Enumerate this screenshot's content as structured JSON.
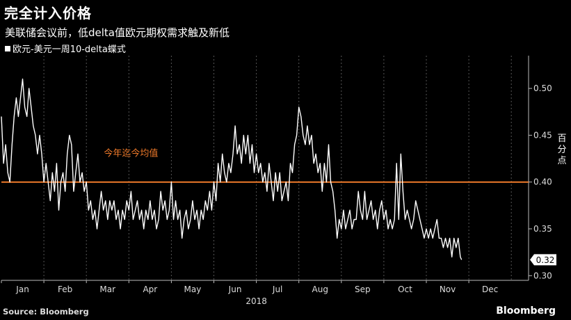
{
  "header": {
    "title": "完全计入价格",
    "subtitle": "美联储会议前，低delta值欧元期权需求触及新低"
  },
  "footer": {
    "source": "Source: Bloomberg",
    "brand": "Bloomberg"
  },
  "colors": {
    "background": "#000000",
    "series": "#ffffff",
    "reference_line": "#f07a2a",
    "grid": "#555555"
  },
  "chart_data": {
    "type": "line",
    "series_name": "欧元-美元一周10-delta蝶式",
    "ylabel": "百分点",
    "xlabel": "2018",
    "ylim": [
      0.295,
      0.535
    ],
    "y_ticks": [
      0.3,
      0.35,
      0.4,
      0.45,
      0.5
    ],
    "months": [
      "Jan",
      "Feb",
      "Mar",
      "Apr",
      "May",
      "Jun",
      "Jul",
      "Aug",
      "Sep",
      "Oct",
      "Nov",
      "Dec"
    ],
    "grid": "vertical dashed at month boundaries",
    "reference_line": {
      "label": "今年迄今均值",
      "value": 0.4
    },
    "last_value_label": "0.32",
    "x_unit": "month index (0 = Jan 1)",
    "values": [
      [
        0.0,
        0.47
      ],
      [
        0.05,
        0.42
      ],
      [
        0.1,
        0.44
      ],
      [
        0.15,
        0.41
      ],
      [
        0.2,
        0.4
      ],
      [
        0.25,
        0.44
      ],
      [
        0.3,
        0.47
      ],
      [
        0.35,
        0.49
      ],
      [
        0.4,
        0.47
      ],
      [
        0.45,
        0.49
      ],
      [
        0.5,
        0.51
      ],
      [
        0.55,
        0.48
      ],
      [
        0.6,
        0.47
      ],
      [
        0.65,
        0.5
      ],
      [
        0.7,
        0.48
      ],
      [
        0.75,
        0.46
      ],
      [
        0.8,
        0.45
      ],
      [
        0.85,
        0.43
      ],
      [
        0.9,
        0.45
      ],
      [
        0.95,
        0.43
      ],
      [
        1.0,
        0.4
      ],
      [
        1.05,
        0.42
      ],
      [
        1.1,
        0.4
      ],
      [
        1.15,
        0.38
      ],
      [
        1.2,
        0.41
      ],
      [
        1.25,
        0.39
      ],
      [
        1.3,
        0.42
      ],
      [
        1.35,
        0.37
      ],
      [
        1.4,
        0.4
      ],
      [
        1.45,
        0.41
      ],
      [
        1.5,
        0.39
      ],
      [
        1.55,
        0.43
      ],
      [
        1.6,
        0.45
      ],
      [
        1.65,
        0.44
      ],
      [
        1.7,
        0.39
      ],
      [
        1.75,
        0.41
      ],
      [
        1.8,
        0.43
      ],
      [
        1.85,
        0.4
      ],
      [
        1.9,
        0.41
      ],
      [
        1.95,
        0.39
      ],
      [
        2.0,
        0.4
      ],
      [
        2.05,
        0.37
      ],
      [
        2.1,
        0.38
      ],
      [
        2.15,
        0.36
      ],
      [
        2.2,
        0.37
      ],
      [
        2.25,
        0.35
      ],
      [
        2.3,
        0.37
      ],
      [
        2.35,
        0.39
      ],
      [
        2.4,
        0.37
      ],
      [
        2.45,
        0.38
      ],
      [
        2.5,
        0.36
      ],
      [
        2.55,
        0.38
      ],
      [
        2.6,
        0.37
      ],
      [
        2.65,
        0.38
      ],
      [
        2.7,
        0.36
      ],
      [
        2.75,
        0.37
      ],
      [
        2.8,
        0.35
      ],
      [
        2.85,
        0.37
      ],
      [
        2.9,
        0.36
      ],
      [
        2.95,
        0.38
      ],
      [
        3.0,
        0.37
      ],
      [
        3.05,
        0.39
      ],
      [
        3.1,
        0.36
      ],
      [
        3.15,
        0.37
      ],
      [
        3.2,
        0.38
      ],
      [
        3.25,
        0.36
      ],
      [
        3.3,
        0.37
      ],
      [
        3.35,
        0.35
      ],
      [
        3.4,
        0.37
      ],
      [
        3.45,
        0.36
      ],
      [
        3.5,
        0.38
      ],
      [
        3.55,
        0.36
      ],
      [
        3.6,
        0.37
      ],
      [
        3.65,
        0.35
      ],
      [
        3.7,
        0.36
      ],
      [
        3.75,
        0.39
      ],
      [
        3.8,
        0.37
      ],
      [
        3.85,
        0.38
      ],
      [
        3.9,
        0.36
      ],
      [
        3.95,
        0.37
      ],
      [
        4.0,
        0.4
      ],
      [
        4.05,
        0.36
      ],
      [
        4.1,
        0.38
      ],
      [
        4.15,
        0.36
      ],
      [
        4.2,
        0.37
      ],
      [
        4.25,
        0.34
      ],
      [
        4.3,
        0.36
      ],
      [
        4.35,
        0.37
      ],
      [
        4.4,
        0.35
      ],
      [
        4.45,
        0.36
      ],
      [
        4.5,
        0.38
      ],
      [
        4.55,
        0.36
      ],
      [
        4.6,
        0.37
      ],
      [
        4.65,
        0.35
      ],
      [
        4.7,
        0.37
      ],
      [
        4.75,
        0.36
      ],
      [
        4.8,
        0.38
      ],
      [
        4.85,
        0.37
      ],
      [
        4.9,
        0.39
      ],
      [
        4.95,
        0.37
      ],
      [
        5.0,
        0.4
      ],
      [
        5.05,
        0.38
      ],
      [
        5.1,
        0.42
      ],
      [
        5.15,
        0.4
      ],
      [
        5.2,
        0.43
      ],
      [
        5.25,
        0.41
      ],
      [
        5.3,
        0.4
      ],
      [
        5.35,
        0.42
      ],
      [
        5.4,
        0.41
      ],
      [
        5.45,
        0.43
      ],
      [
        5.5,
        0.46
      ],
      [
        5.55,
        0.43
      ],
      [
        5.6,
        0.44
      ],
      [
        5.65,
        0.42
      ],
      [
        5.7,
        0.45
      ],
      [
        5.75,
        0.43
      ],
      [
        5.8,
        0.45
      ],
      [
        5.85,
        0.42
      ],
      [
        5.9,
        0.44
      ],
      [
        5.95,
        0.41
      ],
      [
        6.0,
        0.43
      ],
      [
        6.05,
        0.41
      ],
      [
        6.1,
        0.42
      ],
      [
        6.15,
        0.4
      ],
      [
        6.2,
        0.41
      ],
      [
        6.25,
        0.39
      ],
      [
        6.3,
        0.42
      ],
      [
        6.35,
        0.4
      ],
      [
        6.4,
        0.38
      ],
      [
        6.45,
        0.41
      ],
      [
        6.5,
        0.39
      ],
      [
        6.55,
        0.41
      ],
      [
        6.6,
        0.38
      ],
      [
        6.65,
        0.39
      ],
      [
        6.7,
        0.4
      ],
      [
        6.75,
        0.38
      ],
      [
        6.8,
        0.42
      ],
      [
        6.85,
        0.41
      ],
      [
        6.9,
        0.44
      ],
      [
        6.95,
        0.45
      ],
      [
        7.0,
        0.48
      ],
      [
        7.05,
        0.47
      ],
      [
        7.1,
        0.45
      ],
      [
        7.15,
        0.44
      ],
      [
        7.2,
        0.46
      ],
      [
        7.25,
        0.44
      ],
      [
        7.3,
        0.45
      ],
      [
        7.35,
        0.42
      ],
      [
        7.4,
        0.43
      ],
      [
        7.45,
        0.41
      ],
      [
        7.5,
        0.42
      ],
      [
        7.55,
        0.39
      ],
      [
        7.6,
        0.42
      ],
      [
        7.65,
        0.4
      ],
      [
        7.7,
        0.44
      ],
      [
        7.75,
        0.4
      ],
      [
        7.8,
        0.39
      ],
      [
        7.85,
        0.37
      ],
      [
        7.9,
        0.34
      ],
      [
        7.95,
        0.36
      ],
      [
        8.0,
        0.35
      ],
      [
        8.05,
        0.37
      ],
      [
        8.1,
        0.35
      ],
      [
        8.15,
        0.36
      ],
      [
        8.2,
        0.37
      ],
      [
        8.25,
        0.35
      ],
      [
        8.3,
        0.36
      ],
      [
        8.35,
        0.36
      ],
      [
        8.4,
        0.39
      ],
      [
        8.45,
        0.37
      ],
      [
        8.5,
        0.36
      ],
      [
        8.55,
        0.39
      ],
      [
        8.6,
        0.36
      ],
      [
        8.65,
        0.37
      ],
      [
        8.7,
        0.38
      ],
      [
        8.75,
        0.36
      ],
      [
        8.8,
        0.37
      ],
      [
        8.85,
        0.35
      ],
      [
        8.9,
        0.37
      ],
      [
        8.95,
        0.38
      ],
      [
        9.0,
        0.36
      ],
      [
        9.05,
        0.37
      ],
      [
        9.1,
        0.35
      ],
      [
        9.15,
        0.36
      ],
      [
        9.2,
        0.35
      ],
      [
        9.25,
        0.36
      ],
      [
        9.3,
        0.42
      ],
      [
        9.35,
        0.36
      ],
      [
        9.4,
        0.43
      ],
      [
        9.45,
        0.39
      ],
      [
        9.5,
        0.36
      ],
      [
        9.55,
        0.37
      ],
      [
        9.6,
        0.36
      ],
      [
        9.65,
        0.35
      ],
      [
        9.7,
        0.36
      ],
      [
        9.75,
        0.38
      ],
      [
        9.8,
        0.37
      ],
      [
        9.85,
        0.36
      ],
      [
        9.9,
        0.35
      ],
      [
        9.95,
        0.34
      ],
      [
        10.0,
        0.35
      ],
      [
        10.05,
        0.34
      ],
      [
        10.1,
        0.35
      ],
      [
        10.15,
        0.34
      ],
      [
        10.2,
        0.35
      ],
      [
        10.25,
        0.36
      ],
      [
        10.3,
        0.34
      ],
      [
        10.35,
        0.34
      ],
      [
        10.4,
        0.33
      ],
      [
        10.45,
        0.34
      ],
      [
        10.5,
        0.33
      ],
      [
        10.55,
        0.34
      ],
      [
        10.6,
        0.32
      ],
      [
        10.65,
        0.34
      ],
      [
        10.7,
        0.33
      ],
      [
        10.75,
        0.34
      ],
      [
        10.8,
        0.32
      ],
      [
        10.83,
        0.317
      ]
    ]
  }
}
